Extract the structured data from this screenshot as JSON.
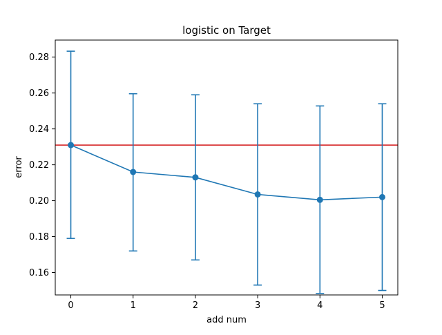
{
  "chart_data": {
    "type": "line",
    "title": "logistic on Target",
    "xlabel": "add num",
    "ylabel": "error",
    "x": [
      0,
      1,
      2,
      3,
      4,
      5
    ],
    "xticks": [
      "0",
      "1",
      "2",
      "3",
      "4",
      "5"
    ],
    "yticks": [
      "0.16",
      "0.18",
      "0.20",
      "0.22",
      "0.24",
      "0.26",
      "0.28"
    ],
    "xlim": [
      -0.25,
      5.25
    ],
    "ylim": [
      0.1475,
      0.2895
    ],
    "series": [
      {
        "values": [
          0.231,
          0.216,
          0.213,
          0.2035,
          0.2005,
          0.202
        ],
        "error_lower": [
          0.179,
          0.172,
          0.167,
          0.153,
          0.1483,
          0.15
        ],
        "error_upper": [
          0.2833,
          0.2596,
          0.259,
          0.254,
          0.2528,
          0.254
        ],
        "color": "#1f77b4",
        "marker": "circle"
      }
    ],
    "reference_line": {
      "y": 0.231,
      "color": "#d62728",
      "orientation": "horizontal"
    },
    "grid": false,
    "legend": "none"
  }
}
